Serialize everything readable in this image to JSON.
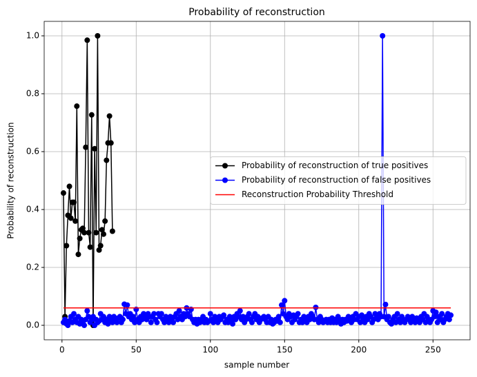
{
  "chart_data": {
    "type": "line",
    "title": "Probability of reconstruction",
    "xlabel": "sample number",
    "ylabel": "Probability of reconstruction",
    "xlim": [
      -12,
      275
    ],
    "ylim": [
      -0.05,
      1.05
    ],
    "xticks": [
      0,
      50,
      100,
      150,
      200,
      250
    ],
    "yticks": [
      {
        "value": 0,
        "label": "0.0"
      },
      0.2,
      0.4,
      0.6,
      0.8,
      {
        "value": 1,
        "label": "1.0"
      }
    ],
    "grid": true,
    "legend": "center right",
    "series": [
      {
        "name": "Probability of reconstruction of true positives",
        "color": "#000000",
        "marker": "o",
        "x": [
          1,
          2,
          3,
          4,
          5,
          6,
          7,
          8,
          9,
          10,
          11,
          12,
          13,
          14,
          15,
          16,
          17,
          18,
          19,
          20,
          21,
          22,
          23,
          24,
          25,
          26,
          27,
          28,
          29,
          30,
          31,
          32,
          33,
          34
        ],
        "values": [
          0.457,
          0.03,
          0.275,
          0.38,
          0.48,
          0.37,
          0.425,
          0.425,
          0.36,
          0.757,
          0.245,
          0.3,
          0.33,
          0.335,
          0.32,
          0.615,
          0.985,
          0.32,
          0.27,
          0.727,
          0.0,
          0.61,
          0.32,
          1.0,
          0.26,
          0.275,
          0.33,
          0.315,
          0.36,
          0.57,
          0.63,
          0.723,
          0.63,
          0.325
        ]
      },
      {
        "name": "Probability of reconstruction of false positives",
        "color": "#0000ff",
        "marker": "o",
        "x": [
          1,
          2,
          3,
          4,
          5,
          6,
          7,
          8,
          9,
          10,
          11,
          12,
          13,
          14,
          15,
          16,
          17,
          18,
          19,
          20,
          21,
          22,
          23,
          24,
          25,
          26,
          27,
          28,
          29,
          30,
          31,
          32,
          33,
          34,
          35,
          36,
          37,
          38,
          39,
          40,
          41,
          42,
          43,
          44,
          45,
          46,
          47,
          48,
          49,
          50,
          51,
          52,
          53,
          54,
          55,
          56,
          57,
          58,
          59,
          60,
          61,
          62,
          63,
          64,
          65,
          66,
          67,
          68,
          69,
          70,
          71,
          72,
          73,
          74,
          75,
          76,
          77,
          78,
          79,
          80,
          81,
          82,
          83,
          84,
          85,
          86,
          87,
          88,
          89,
          90,
          91,
          92,
          93,
          94,
          95,
          96,
          97,
          98,
          99,
          100,
          101,
          102,
          103,
          104,
          105,
          106,
          107,
          108,
          109,
          110,
          111,
          112,
          113,
          114,
          115,
          116,
          117,
          118,
          119,
          120,
          121,
          122,
          123,
          124,
          125,
          126,
          127,
          128,
          129,
          130,
          131,
          132,
          133,
          134,
          135,
          136,
          137,
          138,
          139,
          140,
          141,
          142,
          143,
          144,
          145,
          146,
          147,
          148,
          149,
          150,
          151,
          152,
          153,
          154,
          155,
          156,
          157,
          158,
          159,
          160,
          161,
          162,
          163,
          164,
          165,
          166,
          167,
          168,
          169,
          170,
          171,
          172,
          173,
          174,
          175,
          176,
          177,
          178,
          179,
          180,
          181,
          182,
          183,
          184,
          185,
          186,
          187,
          188,
          189,
          190,
          191,
          192,
          193,
          194,
          195,
          196,
          197,
          198,
          199,
          200,
          201,
          202,
          203,
          204,
          205,
          206,
          207,
          208,
          209,
          210,
          211,
          212,
          213,
          214,
          215,
          216,
          217,
          218,
          219,
          220,
          221,
          222,
          223,
          224,
          225,
          226,
          227,
          228,
          229,
          230,
          231,
          232,
          233,
          234,
          235,
          236,
          237,
          238,
          239,
          240,
          241,
          242,
          243,
          244,
          245,
          246,
          247,
          248,
          249,
          250,
          251,
          252,
          253,
          254,
          255,
          256,
          257,
          258,
          259,
          260,
          261,
          262
        ],
        "values": [
          0.01,
          0.02,
          0.005,
          0.0,
          0.015,
          0.03,
          0.01,
          0.04,
          0.02,
          0.01,
          0.03,
          0.005,
          0.02,
          0.01,
          0.0,
          0.02,
          0.05,
          0.03,
          0.01,
          0.02,
          0.03,
          0.0,
          0.02,
          0.01,
          0.015,
          0.04,
          0.02,
          0.03,
          0.01,
          0.02,
          0.005,
          0.03,
          0.02,
          0.01,
          0.03,
          0.02,
          0.01,
          0.025,
          0.03,
          0.01,
          0.02,
          0.073,
          0.04,
          0.07,
          0.03,
          0.04,
          0.02,
          0.03,
          0.01,
          0.055,
          0.02,
          0.01,
          0.03,
          0.02,
          0.04,
          0.03,
          0.02,
          0.04,
          0.03,
          0.01,
          0.03,
          0.04,
          0.02,
          0.01,
          0.04,
          0.03,
          0.04,
          0.02,
          0.01,
          0.03,
          0.02,
          0.01,
          0.03,
          0.02,
          0.01,
          0.03,
          0.04,
          0.02,
          0.05,
          0.03,
          0.02,
          0.04,
          0.03,
          0.06,
          0.04,
          0.03,
          0.055,
          0.02,
          0.01,
          0.02,
          0.005,
          0.02,
          0.01,
          0.02,
          0.03,
          0.01,
          0.02,
          0.01,
          0.015,
          0.04,
          0.02,
          0.01,
          0.03,
          0.02,
          0.01,
          0.03,
          0.02,
          0.03,
          0.035,
          0.01,
          0.02,
          0.01,
          0.03,
          0.02,
          0.005,
          0.03,
          0.02,
          0.04,
          0.03,
          0.05,
          0.02,
          0.03,
          0.01,
          0.02,
          0.03,
          0.04,
          0.02,
          0.01,
          0.03,
          0.04,
          0.02,
          0.03,
          0.01,
          0.02,
          0.025,
          0.03,
          0.02,
          0.01,
          0.03,
          0.01,
          0.02,
          0.005,
          0.01,
          0.02,
          0.015,
          0.03,
          0.01,
          0.07,
          0.04,
          0.085,
          0.03,
          0.02,
          0.04,
          0.03,
          0.01,
          0.035,
          0.02,
          0.03,
          0.04,
          0.01,
          0.02,
          0.01,
          0.03,
          0.02,
          0.01,
          0.03,
          0.02,
          0.04,
          0.03,
          0.02,
          0.062,
          0.02,
          0.01,
          0.03,
          0.02,
          0.01,
          0.015,
          0.02,
          0.01,
          0.02,
          0.01,
          0.025,
          0.01,
          0.02,
          0.01,
          0.03,
          0.02,
          0.005,
          0.02,
          0.01,
          0.02,
          0.015,
          0.03,
          0.02,
          0.01,
          0.03,
          0.02,
          0.04,
          0.02,
          0.03,
          0.01,
          0.035,
          0.02,
          0.01,
          0.03,
          0.02,
          0.04,
          0.03,
          0.01,
          0.02,
          0.04,
          0.03,
          0.02,
          0.04,
          0.03,
          1.0,
          0.03,
          0.072,
          0.02,
          0.03,
          0.01,
          0.005,
          0.02,
          0.03,
          0.01,
          0.04,
          0.02,
          0.01,
          0.03,
          0.02,
          0.01,
          0.02,
          0.03,
          0.02,
          0.01,
          0.03,
          0.02,
          0.01,
          0.025,
          0.02,
          0.01,
          0.03,
          0.02,
          0.04,
          0.01,
          0.03,
          0.02,
          0.01,
          0.02,
          0.05,
          0.03,
          0.045,
          0.01,
          0.03,
          0.02,
          0.04,
          0.01,
          0.02,
          0.03,
          0.04,
          0.02,
          0.035
        ]
      },
      {
        "name": "Reconstruction Probability Threshold",
        "color": "#ff0000",
        "x": [
          1,
          262
        ],
        "values": [
          0.06,
          0.06
        ]
      }
    ]
  }
}
